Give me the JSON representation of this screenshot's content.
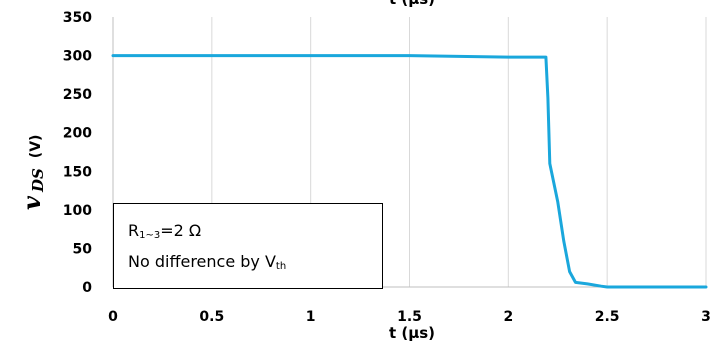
{
  "chart_data": {
    "type": "line",
    "xlabel": "t (µs)",
    "ylabel_main": "v",
    "ylabel_sub": "DS",
    "ylabel_unit": "(V)",
    "xlim": [
      0,
      3
    ],
    "ylim": [
      0,
      350
    ],
    "x_ticks": [
      "0",
      "0.5",
      "1",
      "1.5",
      "2",
      "2.5",
      "3"
    ],
    "y_ticks": [
      "0",
      "50",
      "100",
      "150",
      "200",
      "250",
      "300",
      "350"
    ],
    "grid": "vertical",
    "line_color": "#1aa7dc",
    "series": [
      {
        "x": [
          0,
          0.5,
          1.0,
          1.5,
          2.0,
          2.19,
          2.2,
          2.21,
          2.25,
          2.28,
          2.31,
          2.34,
          2.4,
          2.47,
          2.5,
          3.0
        ],
        "y": [
          300,
          300,
          300,
          300,
          298,
          298,
          245,
          160,
          110,
          60,
          20,
          6,
          4,
          1,
          0,
          0
        ]
      }
    ],
    "annotation": {
      "line1_base": "R",
      "line1_sub": "1~3",
      "line1_rest": "=2  Ω",
      "line2_base": "No difference by V",
      "line2_sub": "th"
    }
  }
}
